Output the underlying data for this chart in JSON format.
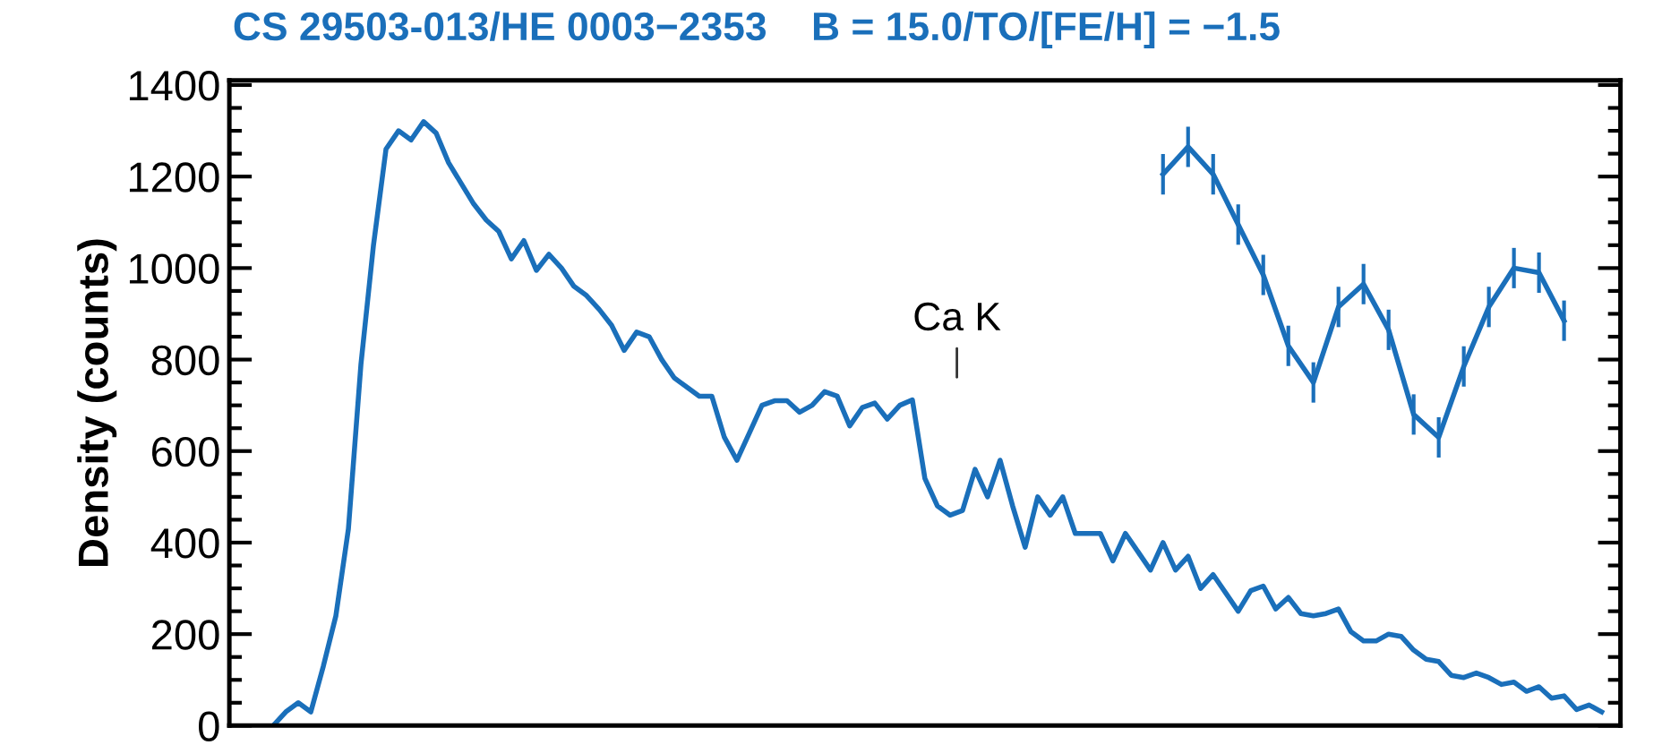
{
  "chart_data": {
    "type": "line",
    "title": "CS 29503-013/HE 0003−2353    B = 15.0/TO/[FE/H] = −1.5",
    "ylabel": "Density (counts)",
    "categories": [
      null,
      null,
      null,
      null,
      null,
      null,
      null,
      null,
      null,
      null,
      null,
      null,
      null,
      null,
      null,
      null,
      null,
      null,
      null,
      null,
      null,
      null,
      null,
      null,
      null,
      null,
      null,
      null,
      null,
      null,
      null,
      null,
      null,
      null,
      null,
      null,
      null,
      null,
      null,
      null,
      null,
      null,
      null,
      null,
      null,
      null,
      null,
      null,
      null,
      null,
      null,
      null,
      null,
      null,
      null,
      null,
      null,
      null,
      null,
      null,
      null,
      null,
      null,
      null,
      null,
      null,
      null,
      null,
      null,
      null,
      null,
      null,
      null,
      null,
      null,
      null,
      null,
      null,
      null,
      null,
      null,
      null,
      null,
      null,
      null,
      null,
      null,
      null,
      null,
      null,
      null,
      null,
      null,
      null,
      null,
      null,
      null,
      null,
      null,
      null,
      null,
      null,
      null,
      null,
      null,
      null,
      null,
      null,
      null,
      null,
      null
    ],
    "series": [
      {
        "color": "#1a6fba",
        "values": [
          null,
          null,
          null,
          0,
          30,
          50,
          30,
          130,
          240,
          430,
          790,
          1050,
          1260,
          1300,
          1280,
          1320,
          1295,
          1230,
          1185,
          1140,
          1105,
          1080,
          1020,
          1060,
          995,
          1030,
          1000,
          960,
          940,
          910,
          875,
          820,
          860,
          850,
          800,
          760,
          740,
          720,
          720,
          630,
          580,
          640,
          700,
          710,
          710,
          685,
          700,
          730,
          720,
          655,
          695,
          705,
          670,
          700,
          712,
          540,
          480,
          460,
          470,
          560,
          500,
          580,
          480,
          390,
          500,
          460,
          500,
          420,
          420,
          420,
          360,
          420,
          380,
          340,
          400,
          340,
          370,
          300,
          330,
          290,
          250,
          295,
          305,
          255,
          280,
          245,
          240,
          245,
          255,
          205,
          185,
          185,
          200,
          195,
          165,
          145,
          140,
          110,
          105,
          115,
          105,
          90,
          95,
          75,
          85,
          60,
          65,
          35,
          45,
          30,
          null
        ]
      },
      {
        "color": "#1a6fba",
        "values": [
          null,
          null,
          null,
          null,
          null,
          null,
          null,
          null,
          null,
          null,
          null,
          null,
          null,
          null,
          null,
          null,
          null,
          null,
          null,
          null,
          null,
          null,
          null,
          null,
          null,
          null,
          null,
          null,
          null,
          null,
          null,
          null,
          null,
          null,
          null,
          null,
          null,
          null,
          null,
          null,
          null,
          null,
          null,
          null,
          null,
          null,
          null,
          null,
          null,
          null,
          null,
          null,
          null,
          null,
          null,
          null,
          null,
          null,
          null,
          null,
          null,
          null,
          null,
          null,
          null,
          null,
          null,
          null,
          null,
          null,
          null,
          null,
          null,
          null,
          1205,
          null,
          1265,
          null,
          1205,
          null,
          1095,
          null,
          985,
          null,
          830,
          null,
          750,
          null,
          915,
          null,
          965,
          null,
          865,
          null,
          680,
          null,
          630,
          null,
          785,
          null,
          915,
          null,
          1000,
          null,
          990,
          null,
          885,
          null,
          null,
          null,
          null
        ],
        "errors": [
          null,
          null,
          null,
          null,
          null,
          null,
          null,
          null,
          null,
          null,
          null,
          null,
          null,
          null,
          null,
          null,
          null,
          null,
          null,
          null,
          null,
          null,
          null,
          null,
          null,
          null,
          null,
          null,
          null,
          null,
          null,
          null,
          null,
          null,
          null,
          null,
          null,
          null,
          null,
          null,
          null,
          null,
          null,
          null,
          null,
          null,
          null,
          null,
          null,
          null,
          null,
          null,
          null,
          null,
          null,
          null,
          null,
          null,
          null,
          null,
          null,
          null,
          null,
          null,
          null,
          null,
          null,
          null,
          null,
          null,
          null,
          null,
          null,
          null,
          40,
          null,
          40,
          null,
          40,
          null,
          40,
          null,
          40,
          null,
          40,
          null,
          40,
          null,
          40,
          null,
          40,
          null,
          40,
          null,
          40,
          null,
          40,
          null,
          40,
          null,
          40,
          null,
          40,
          null,
          40,
          null,
          40,
          null,
          null,
          null,
          null
        ]
      }
    ],
    "annotations": [
      "Ca K"
    ],
    "ylim": [
      0,
      1410
    ],
    "yticks": [
      0,
      200,
      400,
      600,
      800,
      1000,
      1200,
      1400
    ],
    "grid": false,
    "legend": false
  }
}
